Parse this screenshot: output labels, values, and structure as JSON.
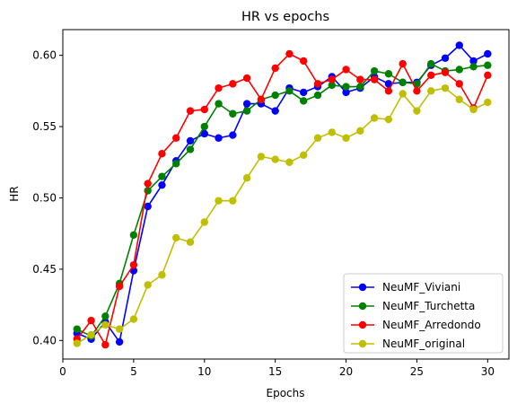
{
  "chart_data": {
    "type": "line",
    "title": "HR vs epochs",
    "xlabel": "Epochs",
    "ylabel": "HR",
    "xlim": [
      0,
      31.5
    ],
    "ylim": [
      0.387,
      0.618
    ],
    "x_ticks": [
      0,
      5,
      10,
      15,
      20,
      25,
      30
    ],
    "y_ticks": [
      0.4,
      0.45,
      0.5,
      0.55,
      0.6
    ],
    "x_tick_labels": [
      "0",
      "5",
      "10",
      "15",
      "20",
      "25",
      "30"
    ],
    "y_tick_labels": [
      "0.40",
      "0.45",
      "0.50",
      "0.55",
      "0.60"
    ],
    "grid": false,
    "legend_position": "lower-right",
    "x": [
      1,
      2,
      3,
      4,
      5,
      6,
      7,
      8,
      9,
      10,
      11,
      12,
      13,
      14,
      15,
      16,
      17,
      18,
      19,
      20,
      21,
      22,
      23,
      24,
      25,
      26,
      27,
      28,
      29,
      30
    ],
    "series": [
      {
        "name": "NeuMF_Viviani",
        "color": "#0000ff",
        "values": [
          0.405,
          0.401,
          0.413,
          0.399,
          0.449,
          0.494,
          0.509,
          0.526,
          0.54,
          0.545,
          0.542,
          0.544,
          0.566,
          0.566,
          0.561,
          0.577,
          0.574,
          0.578,
          0.585,
          0.574,
          0.577,
          0.585,
          0.58,
          0.581,
          0.581,
          0.593,
          0.598,
          0.607,
          0.596,
          0.601
        ]
      },
      {
        "name": "NeuMF_Turchetta",
        "color": "#008000",
        "values": [
          0.408,
          0.403,
          0.417,
          0.44,
          0.474,
          0.505,
          0.515,
          0.524,
          0.534,
          0.55,
          0.566,
          0.559,
          0.561,
          0.569,
          0.572,
          0.575,
          0.568,
          0.572,
          0.579,
          0.578,
          0.578,
          0.589,
          0.587,
          0.581,
          0.58,
          0.594,
          0.589,
          0.59,
          0.592,
          0.593
        ]
      },
      {
        "name": "NeuMF_Arredondo",
        "color": "#ff0000",
        "values": [
          0.401,
          0.414,
          0.397,
          0.438,
          0.453,
          0.51,
          0.531,
          0.542,
          0.561,
          0.562,
          0.577,
          0.58,
          0.584,
          0.569,
          0.591,
          0.601,
          0.596,
          0.58,
          0.583,
          0.59,
          0.583,
          0.583,
          0.575,
          0.594,
          0.575,
          0.586,
          0.588,
          0.58,
          0.563,
          0.586
        ]
      },
      {
        "name": "NeuMF_original",
        "color": "#bfbf00",
        "values": [
          0.398,
          0.404,
          0.411,
          0.408,
          0.415,
          0.439,
          0.446,
          0.472,
          0.469,
          0.483,
          0.498,
          0.498,
          0.514,
          0.529,
          0.527,
          0.525,
          0.53,
          0.542,
          0.546,
          0.542,
          0.547,
          0.556,
          0.555,
          0.573,
          0.561,
          0.575,
          0.577,
          0.569,
          0.562,
          0.567
        ]
      }
    ]
  }
}
